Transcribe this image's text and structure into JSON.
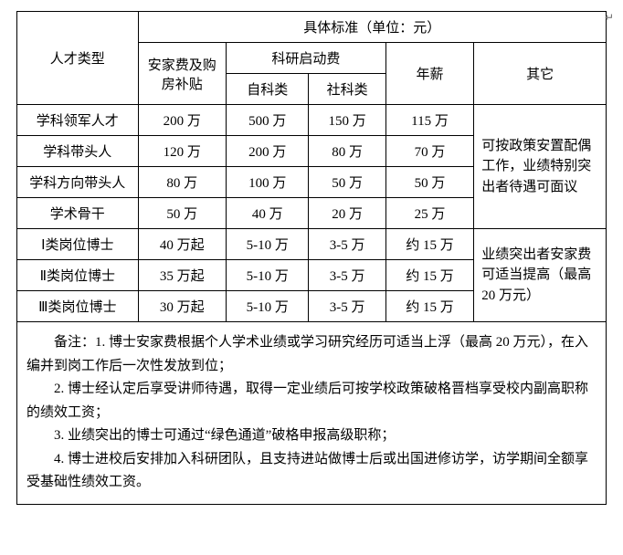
{
  "headers": {
    "talent_type": "人才类型",
    "standard_title": "具体标准（单位：元）",
    "housing": "安家费及购房补贴",
    "research_fund": "科研启动费",
    "natural": "自科类",
    "social": "社科类",
    "salary": "年薪",
    "other": "其它"
  },
  "rows": [
    {
      "type": "学科领军人才",
      "housing": "200 万",
      "nat": "500 万",
      "soc": "150 万",
      "salary": "115 万"
    },
    {
      "type": "学科带头人",
      "housing": "120 万",
      "nat": "200 万",
      "soc": "80 万",
      "salary": "70 万"
    },
    {
      "type": "学科方向带头人",
      "housing": "80 万",
      "nat": "100 万",
      "soc": "50 万",
      "salary": "50 万"
    },
    {
      "type": "学术骨干",
      "housing": "50 万",
      "nat": "40 万",
      "soc": "20 万",
      "salary": "25 万"
    },
    {
      "type": "Ⅰ类岗位博士",
      "housing": "40 万起",
      "nat": "5-10 万",
      "soc": "3-5 万",
      "salary": "约 15 万"
    },
    {
      "type": "Ⅱ类岗位博士",
      "housing": "35 万起",
      "nat": "5-10 万",
      "soc": "3-5 万",
      "salary": "约 15 万"
    },
    {
      "type": "Ⅲ类岗位博士",
      "housing": "30 万起",
      "nat": "5-10 万",
      "soc": "3-5 万",
      "salary": "约 15 万"
    }
  ],
  "other_group1": "可按政策安置配偶工作，业绩特别突出者待遇可面议",
  "other_group2": "业绩突出者安家费可适当提高（最高20 万元）",
  "notes": {
    "n1": "备注：1. 博士安家费根据个人学术业绩或学习研究经历可适当上浮（最高 20 万元），在入编并到岗工作后一次性发放到位；",
    "n2": "2. 博士经认定后享受讲师待遇，取得一定业绩后可按学校政策破格晋档享受校内副高职称的绩效工资；",
    "n3": "3. 业绩突出的博士可通过“绿色通道”破格申报高级职称；",
    "n4": "4. 博士进校后安排加入科研团队，且支持进站做博士后或出国进修访学，访学期间全额享受基础性绩效工资。"
  },
  "style": {
    "border_color": "#000000",
    "bg_color": "#ffffff",
    "text_color": "#000000",
    "font_size_body": 15,
    "font_family": "SimSun"
  }
}
